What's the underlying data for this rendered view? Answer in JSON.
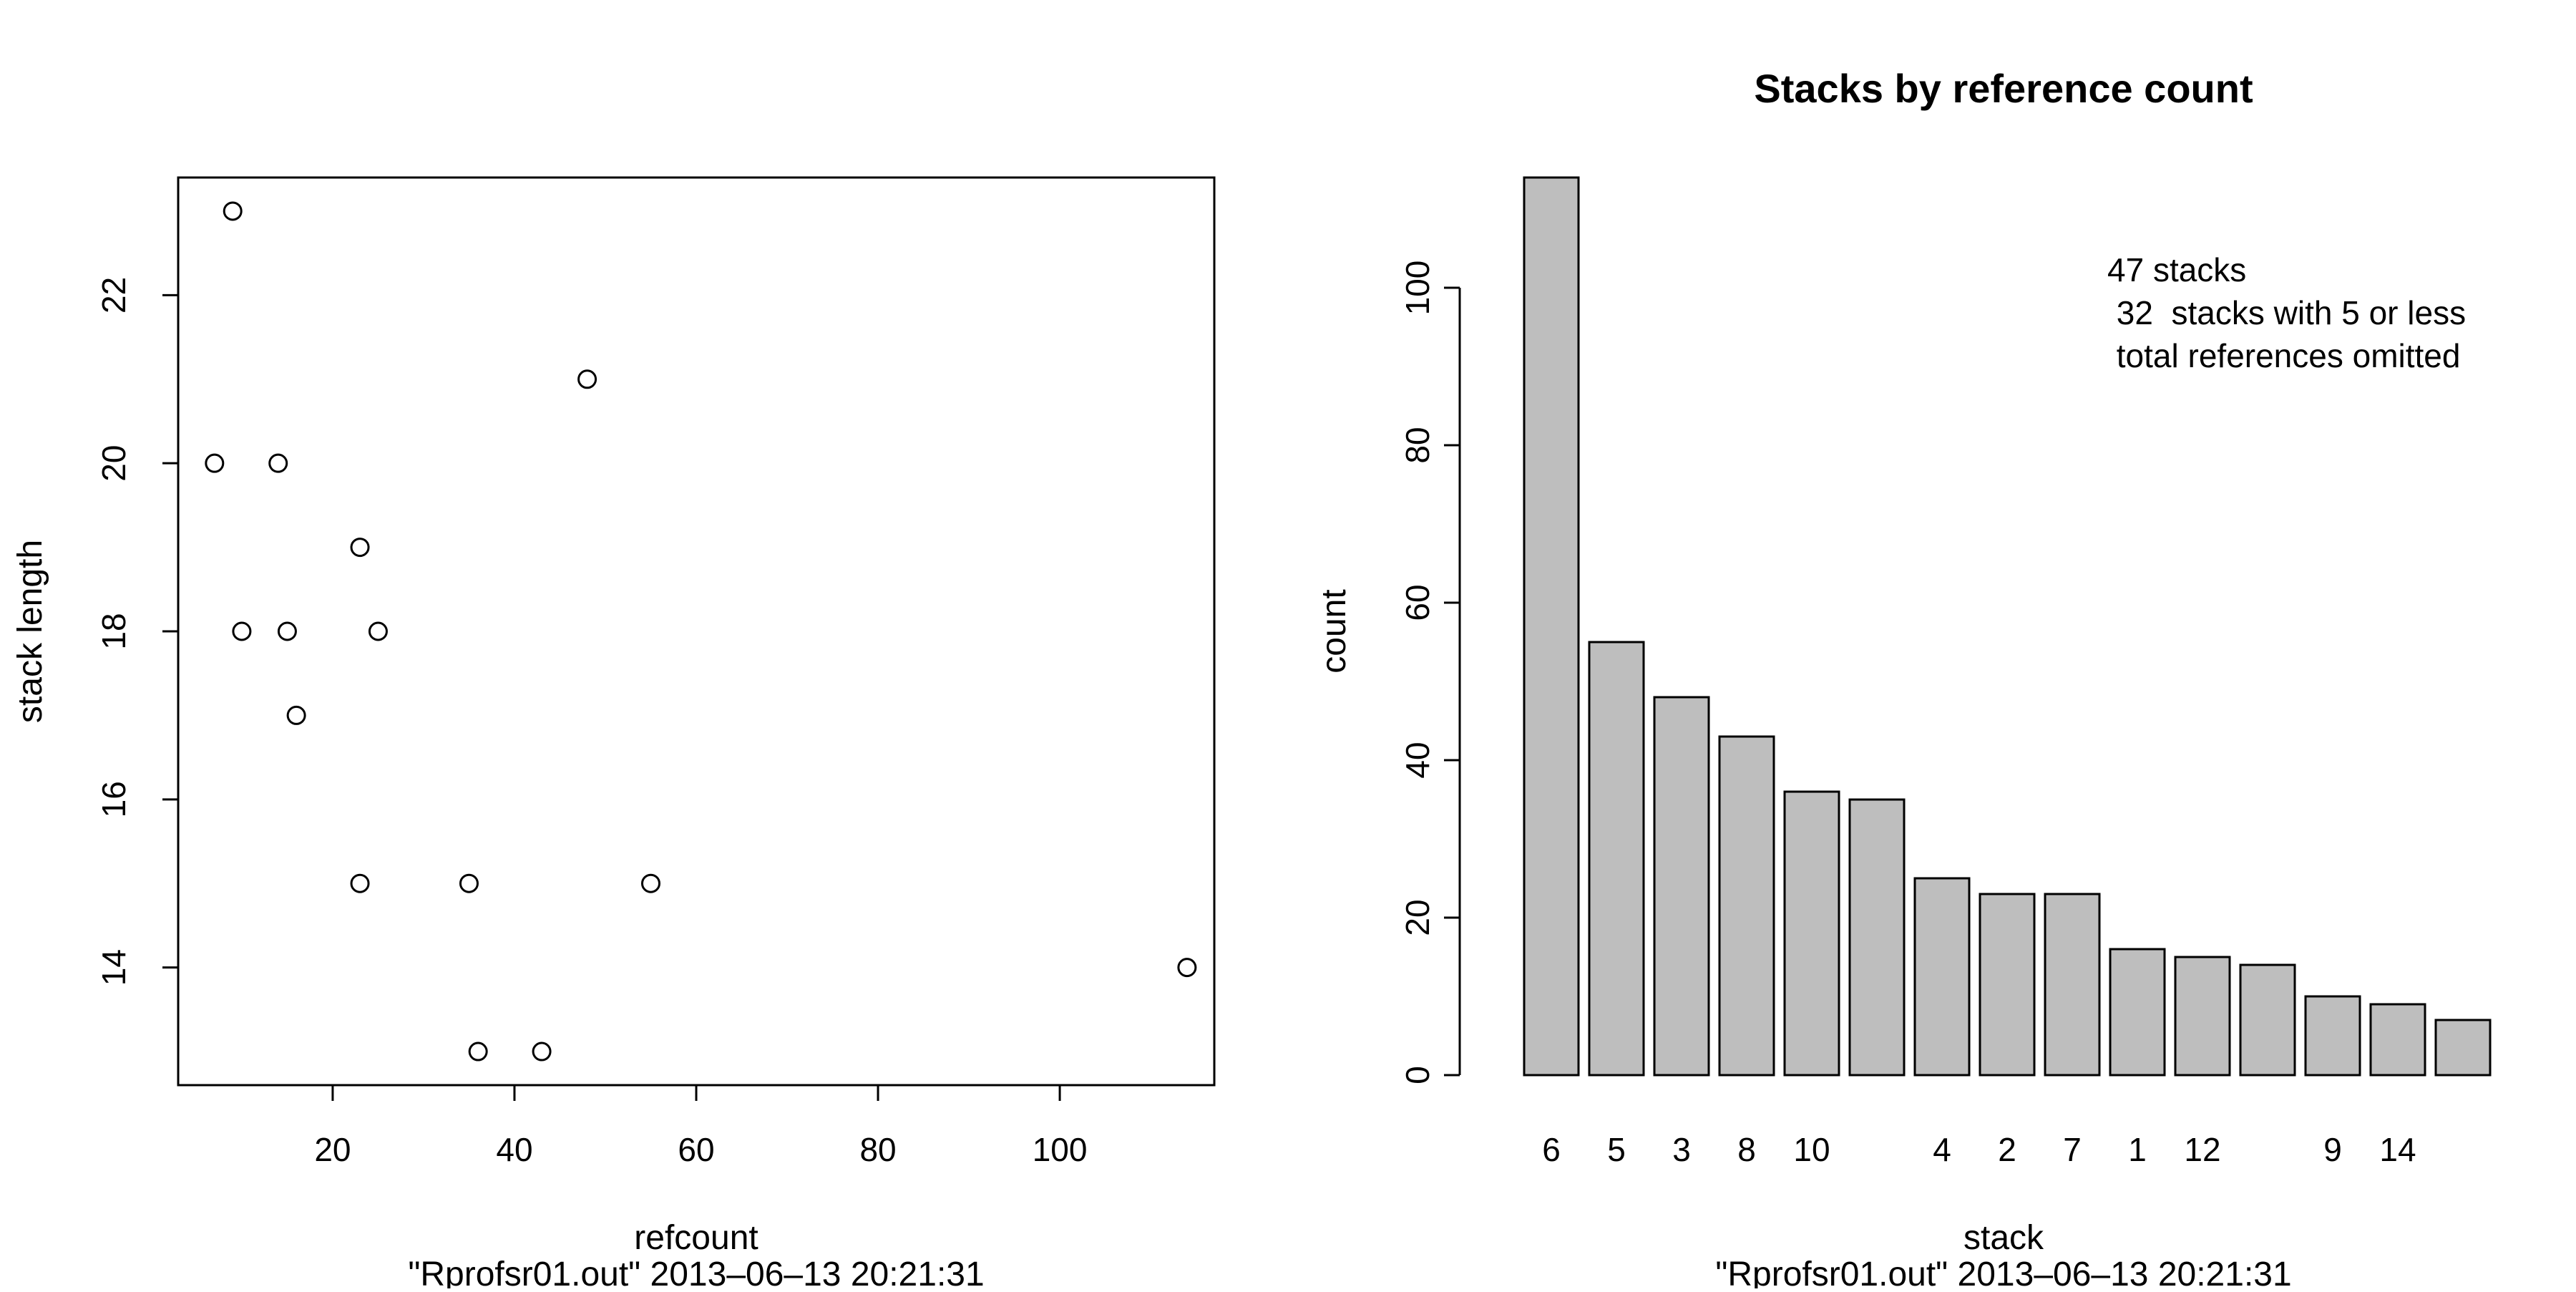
{
  "chart_data": [
    {
      "type": "scatter",
      "title": "",
      "xlabel": "refcount",
      "ylabel": "stack length",
      "subtitle": "\"Rprofsr01.out\" 2013–06–13 20:21:31",
      "xlim": [
        3,
        117
      ],
      "ylim": [
        12.6,
        23.4
      ],
      "xticks": [
        20,
        40,
        60,
        80,
        100
      ],
      "yticks": [
        14,
        16,
        18,
        20,
        22
      ],
      "xtick_labels": [
        "20",
        "40",
        "60",
        "80",
        "100"
      ],
      "ytick_labels": [
        "14",
        "16",
        "18",
        "20",
        "22"
      ],
      "points": [
        {
          "x": 9,
          "y": 23
        },
        {
          "x": 48,
          "y": 21
        },
        {
          "x": 7,
          "y": 20
        },
        {
          "x": 14,
          "y": 20
        },
        {
          "x": 23,
          "y": 19
        },
        {
          "x": 10,
          "y": 18
        },
        {
          "x": 15,
          "y": 18
        },
        {
          "x": 25,
          "y": 18
        },
        {
          "x": 16,
          "y": 17
        },
        {
          "x": 23,
          "y": 15
        },
        {
          "x": 35,
          "y": 15
        },
        {
          "x": 55,
          "y": 15
        },
        {
          "x": 114,
          "y": 14
        },
        {
          "x": 36,
          "y": 13
        },
        {
          "x": 43,
          "y": 13
        }
      ]
    },
    {
      "type": "bar",
      "title": "Stacks by reference count",
      "xlabel": "stack",
      "ylabel": "count",
      "subtitle": "\"Rprofsr01.out\" 2013–06–13 20:21:31",
      "ylim": [
        0,
        114
      ],
      "yticks": [
        0,
        20,
        40,
        60,
        80,
        100
      ],
      "ytick_labels": [
        "0",
        "20",
        "40",
        "60",
        "80",
        "100"
      ],
      "categories": [
        "6",
        "5",
        "3",
        "8",
        "10",
        "",
        "4",
        "2",
        "7",
        "1",
        "12",
        "",
        "9",
        "14",
        ""
      ],
      "values": [
        114,
        55,
        48,
        43,
        36,
        35,
        25,
        23,
        23,
        16,
        15,
        14,
        10,
        9,
        7
      ],
      "annotation": [
        "47 stacks",
        " 32  stacks with 5 or less",
        " total references omitted"
      ]
    }
  ]
}
